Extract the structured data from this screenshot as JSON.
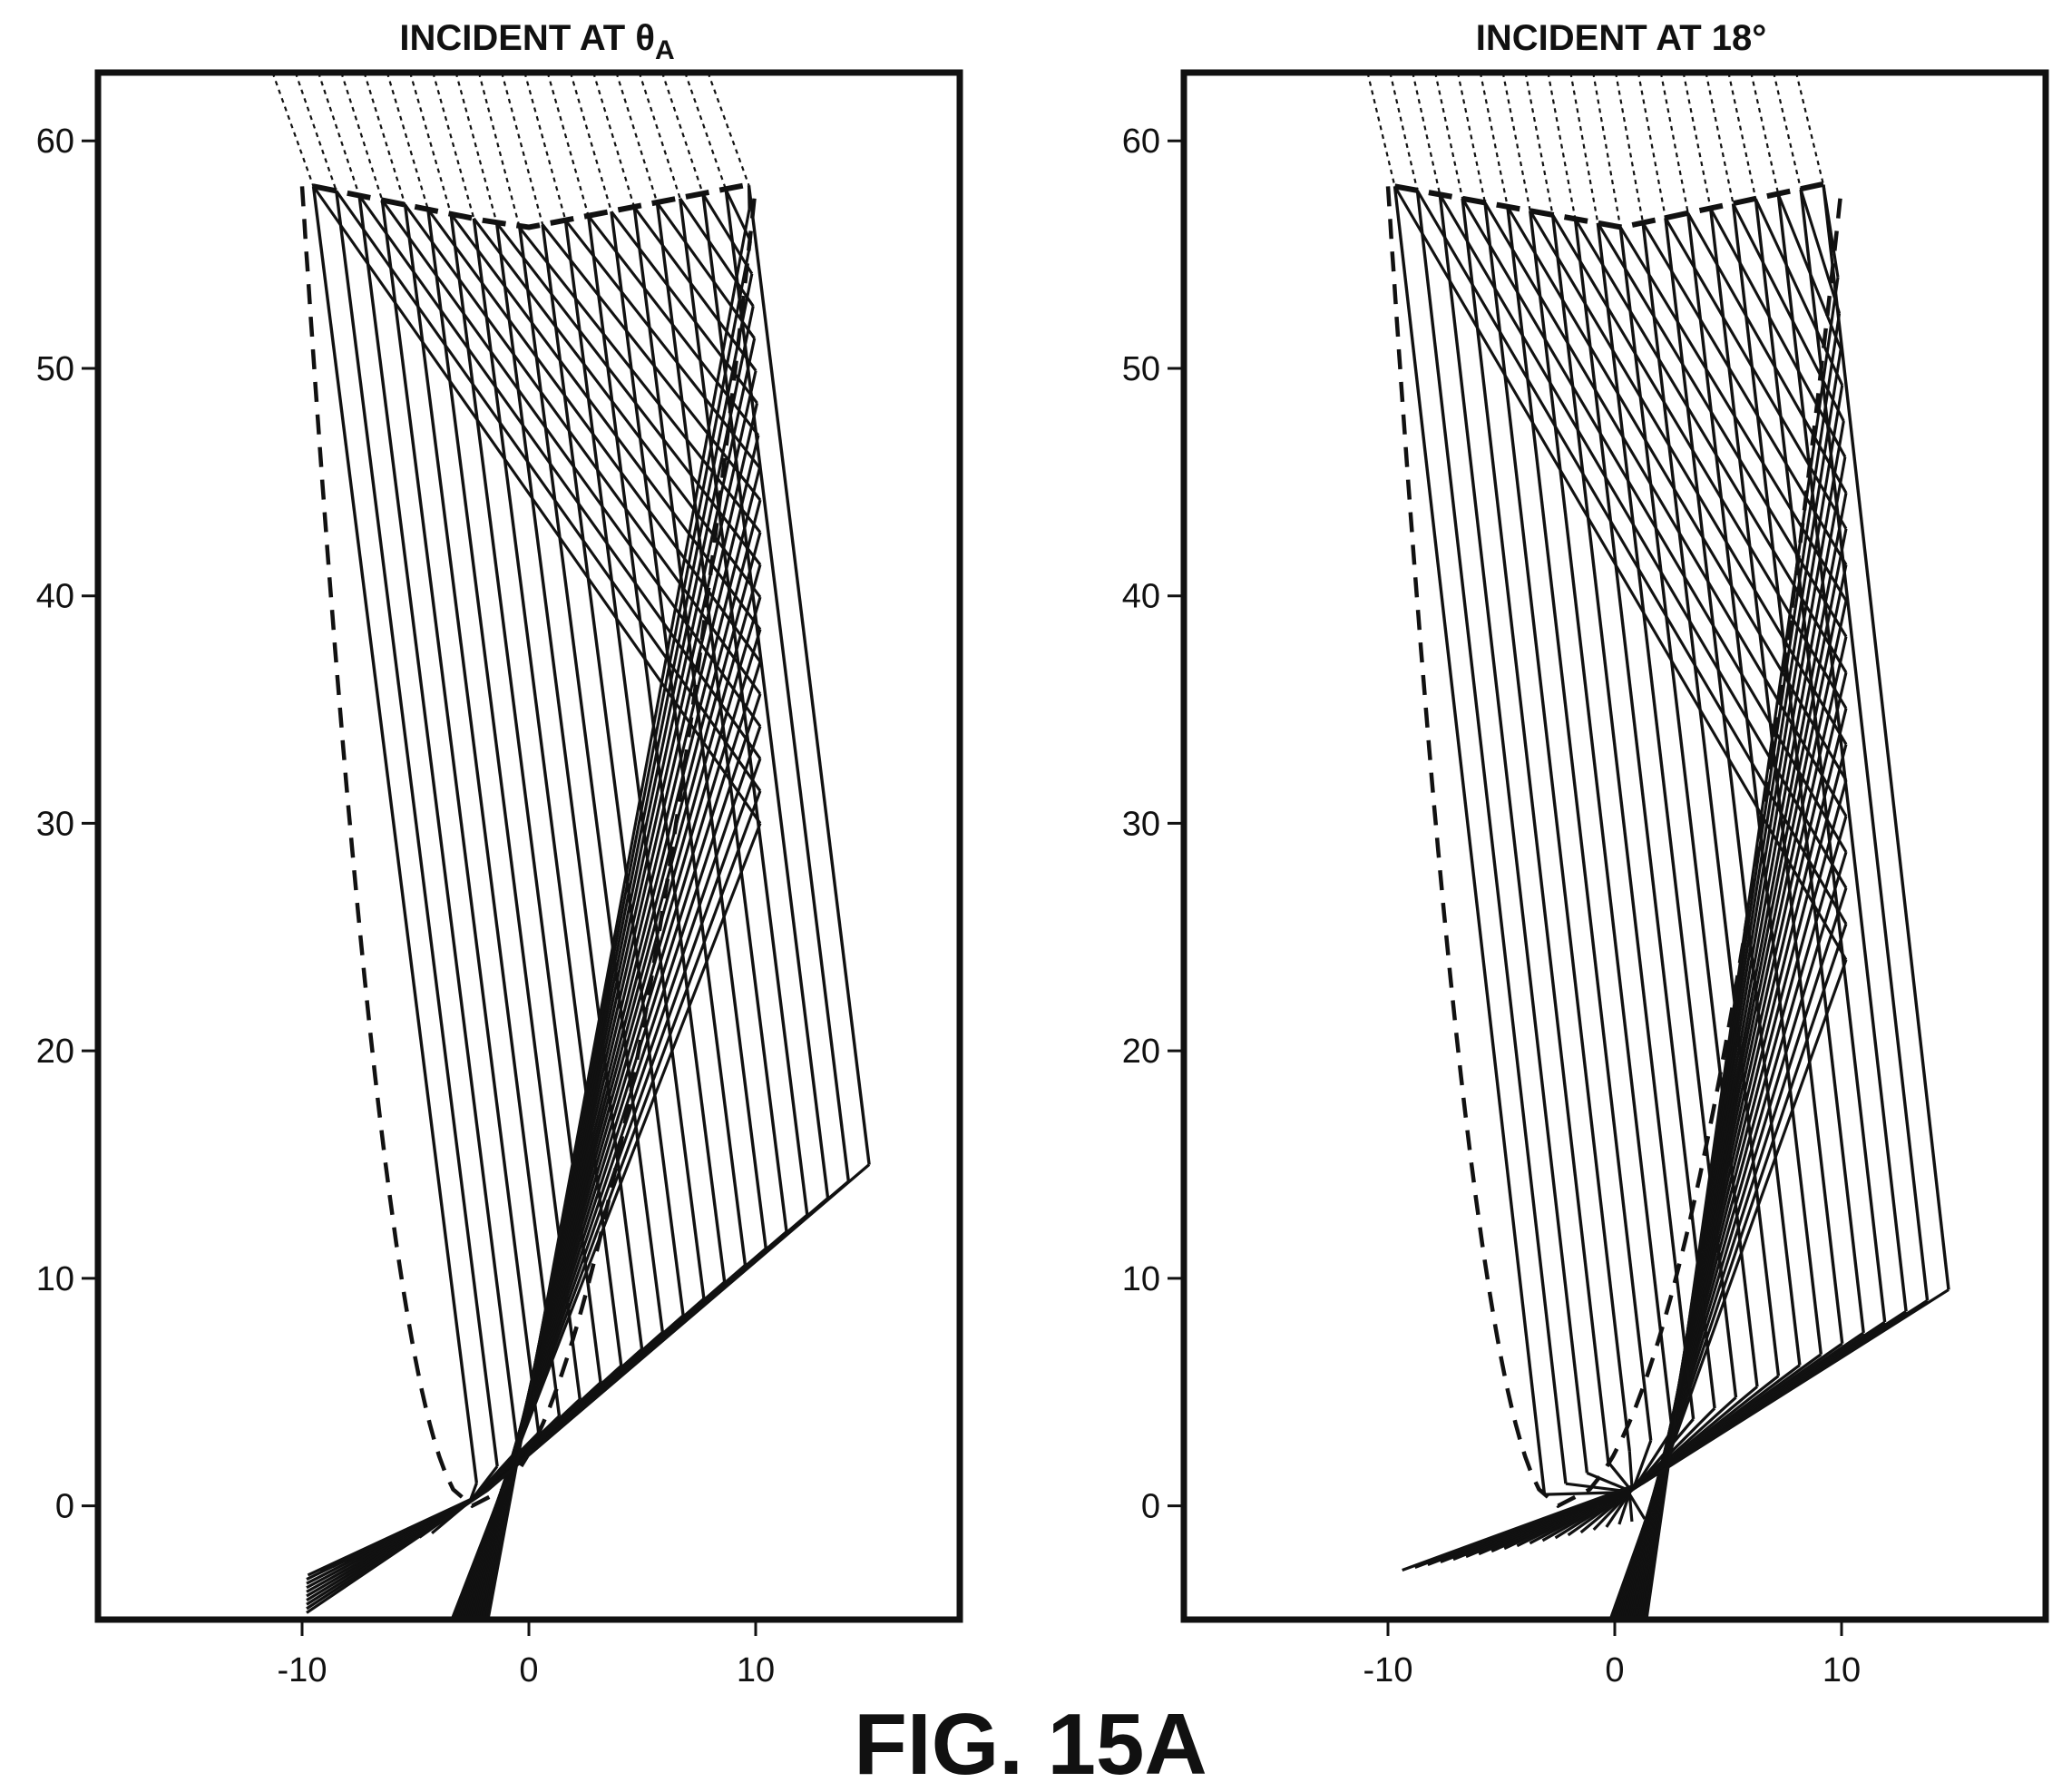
{
  "figure": {
    "caption": "FIG. 15A"
  },
  "panels": [
    {
      "id": "left",
      "title_main": "INCIDENT AT θ",
      "title_sub": "A",
      "title_suffix": "",
      "focus": [
        -2.6,
        0.2
      ],
      "reflect_slope": 0.45
    },
    {
      "id": "right",
      "title_main": "INCIDENT AT 18°",
      "title_sub": "",
      "title_suffix": "",
      "focus": [
        0.6,
        0.6
      ],
      "reflect_slope": 0.62
    }
  ],
  "axes": {
    "xlim": [
      -19,
      19
    ],
    "ylim": [
      -5,
      63
    ],
    "x_ticks": [
      -10,
      0,
      10
    ],
    "x_tick_labels": [
      "-10",
      "0",
      "10"
    ],
    "y_ticks": [
      0,
      10,
      20,
      30,
      40,
      50,
      60
    ],
    "y_tick_labels": [
      "0",
      "10",
      "20",
      "30",
      "40",
      "50",
      "60"
    ]
  },
  "reflector": {
    "description_style": "dashed parabola",
    "vertex": [
      -2.5,
      0
    ],
    "rim_y": 58,
    "rim_x": [
      -10,
      10
    ]
  },
  "colors": {
    "ink": "#111111",
    "background": "#ffffff"
  }
}
